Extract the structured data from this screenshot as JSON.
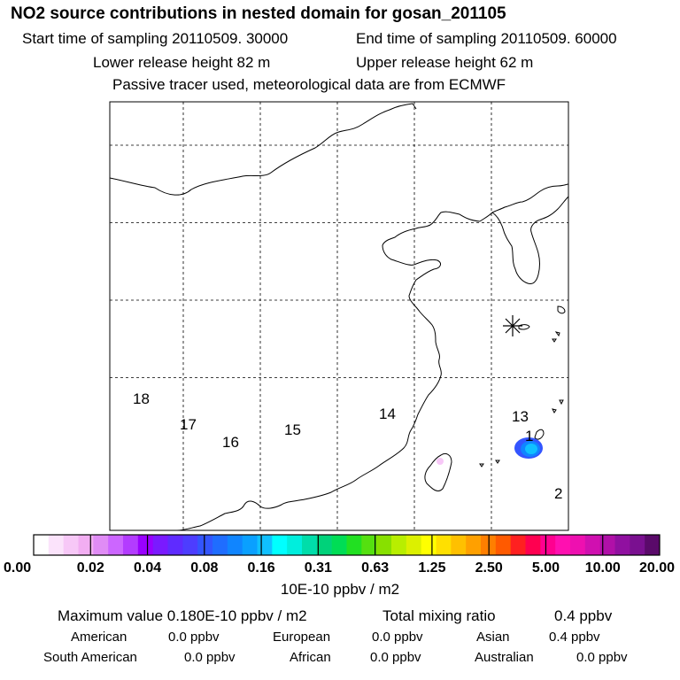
{
  "header": {
    "title": "NO2 source contributions in nested domain for gosan_201105",
    "start_time": "Start time of sampling 20110509. 30000",
    "end_time": "End time of sampling 20110509. 60000",
    "lower_height": "Lower release height   82 m",
    "upper_height": "Upper release height   62 m",
    "tracer_note": "Passive tracer used, meteorological data are from ECMWF"
  },
  "chart_data": {
    "type": "heatmap",
    "title": "NO2 source contributions in nested domain for gosan_201105",
    "grid": true,
    "grid_columns": 6,
    "grid_rows": 5,
    "region_labels": [
      "18",
      "17",
      "16",
      "15",
      "14",
      "13",
      "1",
      "2"
    ],
    "receptor_marker": "asterisk",
    "plume_level": 0.16,
    "colorbar": {
      "ticks": [
        "0.00",
        "0.02",
        "0.04",
        "0.08",
        "0.16",
        "0.31",
        "0.63",
        "1.25",
        "2.50",
        "5.00",
        "10.00",
        "20.00"
      ],
      "colors": [
        "#ffffff",
        "#fbe3fb",
        "#f7c8f7",
        "#f2aef2",
        "#e08cf5",
        "#cc66ff",
        "#b33cff",
        "#9900ff",
        "#7a1aff",
        "#5f2bff",
        "#4d3dff",
        "#3355ff",
        "#1f6dff",
        "#1085ff",
        "#0aa0ff",
        "#10c0ff",
        "#00ffff",
        "#00eedd",
        "#00ddaa",
        "#00d27a",
        "#00dd55",
        "#22e022",
        "#55e010",
        "#88e000",
        "#b8ee00",
        "#dcf000",
        "#ffff00",
        "#ffe000",
        "#ffc000",
        "#ffa000",
        "#ff7f00",
        "#ff5a00",
        "#ff2020",
        "#ff0050",
        "#ff0090",
        "#ff10b0",
        "#ee10b0",
        "#d010b0",
        "#b010a8",
        "#9010a0",
        "#7a1090",
        "#5a0a6a"
      ],
      "unit": "10E-10 ppbv / m2"
    }
  },
  "stats": {
    "max_value": "Maximum value  0.180E-10 ppbv / m2",
    "total_label": "Total mixing ratio",
    "total_value": "0.4 ppbv"
  },
  "sources": {
    "american_label": "American",
    "american_value": "0.0 ppbv",
    "european_label": "European",
    "european_value": "0.0 ppbv",
    "asian_label": "Asian",
    "asian_value": "0.4 ppbv",
    "south_american_label": "South American",
    "south_american_value": "0.0 ppbv",
    "african_label": "African",
    "african_value": "0.0 ppbv",
    "australian_label": "Australian",
    "australian_value": "0.0 ppbv"
  },
  "colors": {
    "frame": "#000000",
    "grid": "#000000",
    "coast": "#000000"
  }
}
